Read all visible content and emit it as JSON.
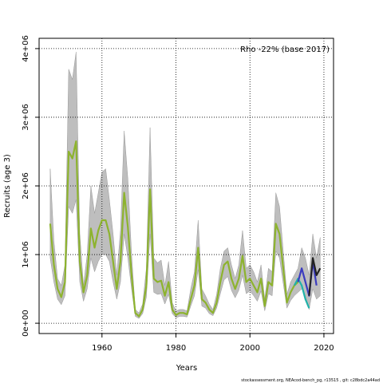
{
  "chart_data": {
    "type": "line",
    "annotation": "Rho -22% (base 2017)",
    "xlabel": "Years",
    "ylabel": "Recruits (age 3)",
    "footer": "stockassessment.org, NEAcod-bench_pg, r13515 , git: c28bdc2a44ad",
    "xlim": [
      1943,
      2022.6
    ],
    "ylim": [
      -150000,
      4150000
    ],
    "xticks": [
      1960,
      1980,
      2000,
      2020
    ],
    "yticks": [
      {
        "value": 0,
        "label": "0e+00"
      },
      {
        "value": 1000000,
        "label": "1e+06"
      },
      {
        "value": 2000000,
        "label": "2e+06"
      },
      {
        "value": 3000000,
        "label": "3e+06"
      },
      {
        "value": 4000000,
        "label": "4e+06"
      }
    ],
    "grid": true,
    "band": {
      "color": "#bebebe",
      "x": [
        1946,
        1947,
        1948,
        1949,
        1950,
        1951,
        1952,
        1953,
        1954,
        1955,
        1956,
        1957,
        1958,
        1959,
        1960,
        1961,
        1962,
        1963,
        1964,
        1965,
        1966,
        1967,
        1968,
        1969,
        1970,
        1971,
        1972,
        1973,
        1974,
        1975,
        1976,
        1977,
        1978,
        1979,
        1980,
        1981,
        1982,
        1983,
        1984,
        1985,
        1986,
        1987,
        1988,
        1989,
        1990,
        1991,
        1992,
        1993,
        1994,
        1995,
        1996,
        1997,
        1998,
        1999,
        2000,
        2001,
        2002,
        2003,
        2004,
        2005,
        2006,
        2007,
        2008,
        2009,
        2010,
        2011,
        2012,
        2013,
        2014,
        2015,
        2016,
        2017,
        2018,
        2019
      ],
      "upper": [
        2250000.0,
        1200000.0,
        650000.0,
        550000.0,
        850000.0,
        3700000.0,
        3550000.0,
        3950000.0,
        1300000.0,
        550000.0,
        1000000.0,
        2000000.0,
        1600000.0,
        1900000.0,
        2200000.0,
        2250000.0,
        1800000.0,
        1300000.0,
        700000.0,
        1350000.0,
        2800000.0,
        2100000.0,
        1000000.0,
        200000.0,
        150000.0,
        280000.0,
        800000.0,
        2850000.0,
        950000.0,
        880000.0,
        920000.0,
        550000.0,
        900000.0,
        300000.0,
        180000.0,
        200000.0,
        200000.0,
        180000.0,
        500000.0,
        750000.0,
        1500000.0,
        500000.0,
        400000.0,
        280000.0,
        200000.0,
        420000.0,
        800000.0,
        1050000.0,
        1100000.0,
        850000.0,
        650000.0,
        850000.0,
        1350000.0,
        800000.0,
        850000.0,
        750000.0,
        600000.0,
        850000.0,
        350000.0,
        800000.0,
        750000.0,
        1900000.0,
        1700000.0,
        1050000.0,
        420000.0,
        600000.0,
        700000.0,
        800000.0,
        1100000.0,
        950000.0,
        700000.0,
        1300000.0,
        950000.0,
        1250000.0
      ],
      "lower": [
        950000.0,
        600000.0,
        350000.0,
        270000.0,
        400000.0,
        1700000.0,
        1600000.0,
        1800000.0,
        600000.0,
        320000.0,
        500000.0,
        950000.0,
        750000.0,
        900000.0,
        1000000.0,
        1000000.0,
        900000.0,
        600000.0,
        350000.0,
        600000.0,
        1300000.0,
        950000.0,
        500000.0,
        100000.0,
        70000.0,
        140000.0,
        380000.0,
        1300000.0,
        450000.0,
        420000.0,
        430000.0,
        280000.0,
        420000.0,
        140000.0,
        80000.0,
        100000.0,
        100000.0,
        90000.0,
        250000.0,
        400000.0,
        780000.0,
        250000.0,
        220000.0,
        140000.0,
        110000.0,
        220000.0,
        430000.0,
        630000.0,
        680000.0,
        480000.0,
        370000.0,
        480000.0,
        700000.0,
        430000.0,
        470000.0,
        400000.0,
        320000.0,
        470000.0,
        180000.0,
        430000.0,
        400000.0,
        1050000.0,
        950000.0,
        580000.0,
        220000.0,
        330000.0,
        400000.0,
        450000.0,
        500000.0,
        400000.0,
        200000.0,
        500000.0,
        350000.0,
        400000.0
      ]
    },
    "series": [
      {
        "color": "#8db32e",
        "x": [
          1946,
          1947,
          1948,
          1949,
          1950,
          1951,
          1952,
          1953,
          1954,
          1955,
          1956,
          1957,
          1958,
          1959,
          1960,
          1961,
          1962,
          1963,
          1964,
          1965,
          1966,
          1967,
          1968,
          1969,
          1970,
          1971,
          1972,
          1973,
          1974,
          1975,
          1976,
          1977,
          1978,
          1979,
          1980,
          1981,
          1982,
          1983,
          1984,
          1985,
          1986,
          1987,
          1988,
          1989,
          1990,
          1991,
          1992,
          1993,
          1994,
          1995,
          1996,
          1997,
          1998,
          1999,
          2000,
          2001,
          2002,
          2003,
          2004,
          2005,
          2006,
          2007,
          2008,
          2009,
          2010,
          2011,
          2012,
          2013
        ],
        "values": [
          1450000.0,
          850000.0,
          500000.0,
          380000.0,
          600000.0,
          2500000.0,
          2400000.0,
          2650000.0,
          900000.0,
          450000.0,
          700000.0,
          1380000.0,
          1100000.0,
          1350000.0,
          1500000.0,
          1500000.0,
          1300000.0,
          900000.0,
          500000.0,
          900000.0,
          1900000.0,
          1400000.0,
          700000.0,
          150000.0,
          100000.0,
          200000.0,
          550000.0,
          1950000.0,
          650000.0,
          600000.0,
          620000.0,
          400000.0,
          600000.0,
          200000.0,
          120000.0,
          150000.0,
          150000.0,
          130000.0,
          350000.0,
          550000.0,
          1100000.0,
          350000.0,
          300000.0,
          200000.0,
          150000.0,
          300000.0,
          600000.0,
          850000.0,
          900000.0,
          650000.0,
          500000.0,
          650000.0,
          980000.0,
          600000.0,
          650000.0,
          550000.0,
          450000.0,
          650000.0,
          250000.0,
          600000.0,
          550000.0,
          1450000.0,
          1300000.0,
          800000.0,
          300000.0,
          450000.0,
          550000.0,
          600000.0
        ]
      },
      {
        "color": "#20b2aa",
        "x": [
          2012,
          2013,
          2014,
          2015,
          2016
        ],
        "values": [
          550000.0,
          650000.0,
          550000.0,
          350000.0,
          220000.0
        ]
      },
      {
        "color": "#3b3bbf",
        "x": [
          2013,
          2014,
          2015,
          2016,
          2017,
          2018
        ],
        "values": [
          600000.0,
          800000.0,
          600000.0,
          400000.0,
          900000.0,
          550000.0
        ]
      },
      {
        "color": "#222222",
        "x": [
          2016,
          2017,
          2018,
          2019
        ],
        "values": [
          400000.0,
          950000.0,
          700000.0,
          800000.0
        ]
      }
    ]
  }
}
